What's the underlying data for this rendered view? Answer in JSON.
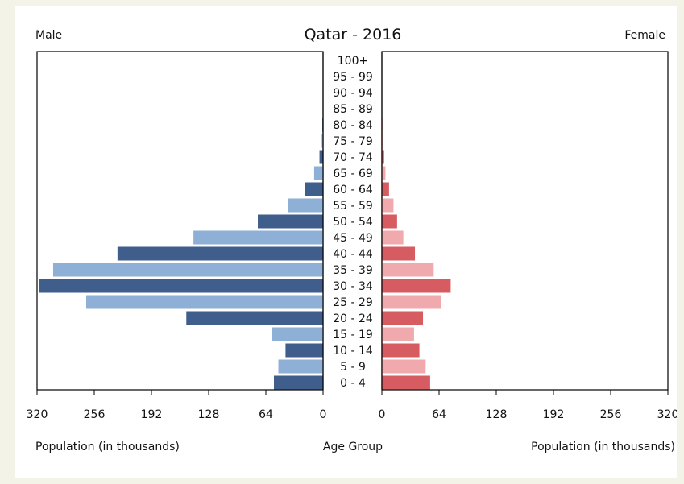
{
  "chart_data": {
    "type": "bar",
    "title": "Qatar - 2016",
    "left_label": "Male",
    "right_label": "Female",
    "center_label": "Age Group",
    "xlabel_left": "Population (in thousands)",
    "xlabel_right": "Population (in thousands)",
    "xlim": [
      0,
      320
    ],
    "xticks": [
      0,
      64,
      128,
      192,
      256,
      320
    ],
    "categories": [
      "100+",
      "95 - 99",
      "90 - 94",
      "85 - 89",
      "80 - 84",
      "75 - 79",
      "70 - 74",
      "65 - 69",
      "60 - 64",
      "55 - 59",
      "50 - 54",
      "45 - 49",
      "40 - 44",
      "35 - 39",
      "30 - 34",
      "25 - 29",
      "20 - 24",
      "15 - 19",
      "10 - 14",
      "5 - 9",
      "0 - 4"
    ],
    "series": [
      {
        "name": "Male",
        "values": [
          0,
          0.1,
          0.2,
          0.4,
          0.8,
          1.5,
          4,
          10,
          20,
          39,
          73,
          145,
          230,
          302,
          318,
          265,
          153,
          57,
          42,
          50,
          55
        ]
      },
      {
        "name": "Female",
        "values": [
          0,
          0.1,
          0.2,
          0.3,
          0.6,
          1.2,
          2.5,
          4,
          8,
          13,
          17,
          24,
          37,
          58,
          77,
          66,
          46,
          36,
          42,
          49,
          54
        ]
      }
    ],
    "colors": {
      "male_dark": "#3f5e8c",
      "male_light": "#8eafd6",
      "female_dark": "#d65c61",
      "female_light": "#f0aaad"
    },
    "grid": false
  }
}
